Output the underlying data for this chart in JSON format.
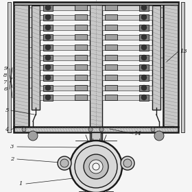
{
  "bg_color": "#f5f5f5",
  "line_color": "#1a1a1a",
  "gray_fill": "#c8c8c8",
  "dark_fill": "#808080",
  "med_fill": "#a0a0a0",
  "hatch_color": "#555555",
  "figure_width": 2.8,
  "figure_height": 2.8,
  "dpi": 100
}
